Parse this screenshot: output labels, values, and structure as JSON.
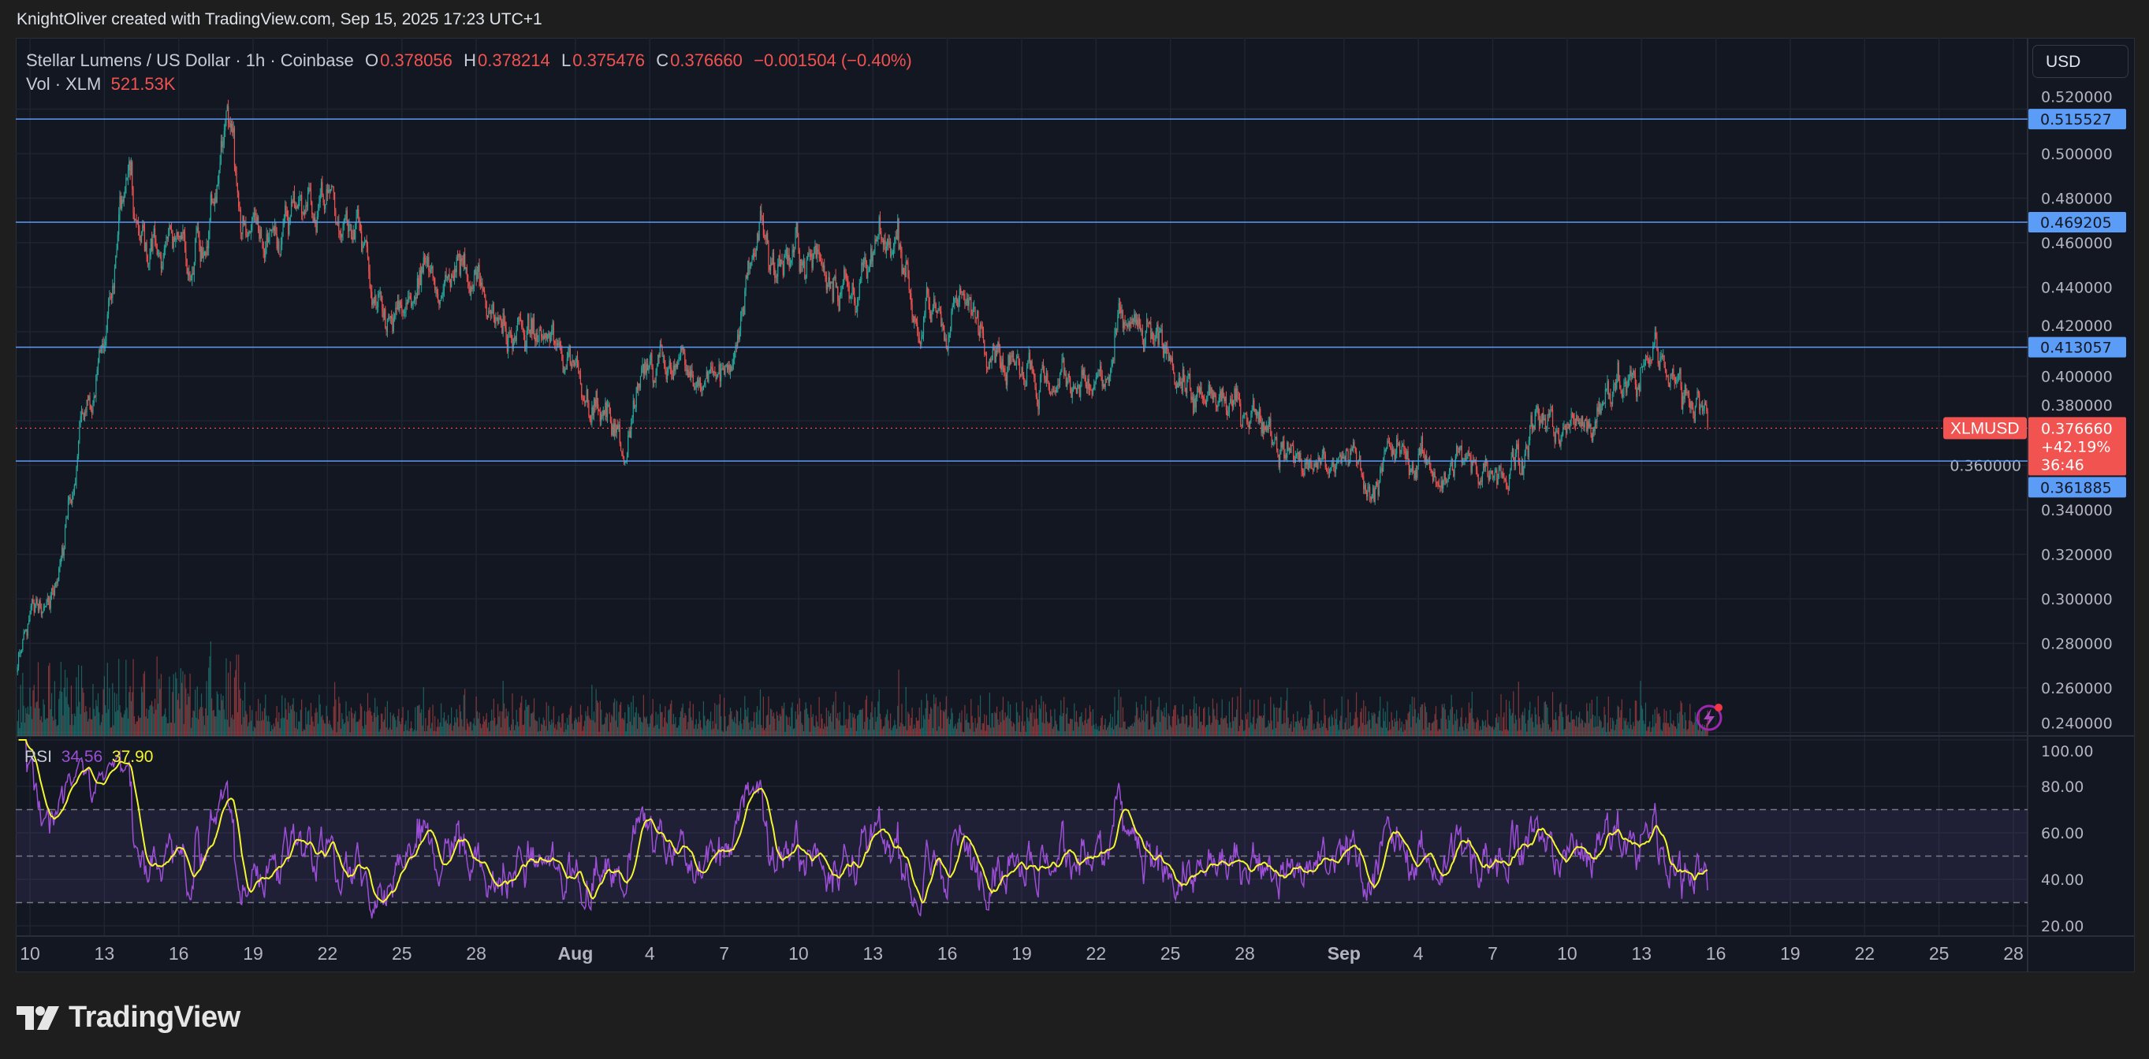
{
  "credit": "KnightOliver created with TradingView.com, Sep 15, 2025 17:23 UTC+1",
  "legend": {
    "symbol": "Stellar Lumens / US Dollar · 1h · Coinbase",
    "o_label": "O",
    "o": "0.378056",
    "h_label": "H",
    "h": "0.378214",
    "l_label": "L",
    "l": "0.375476",
    "c_label": "C",
    "c": "0.376660",
    "change": "−0.001504 (−0.40%)",
    "vol_label": "Vol · XLM",
    "vol": "521.53K"
  },
  "rsi_legend": {
    "label": "RSI",
    "rsi": "34.56",
    "ma": "37.90"
  },
  "currency_button": "USD",
  "logo_text": "TradingView",
  "colors": {
    "up": "#26a69a",
    "down": "#ef5350",
    "level_line": "#5b9cf6",
    "rsi": "#9c4fd6",
    "rsi_ma": "#f5f531",
    "price_label": "#f05350"
  },
  "icons": {
    "alert": "lightning-bolt-icon"
  },
  "chart_data": [
    {
      "type": "candlestick",
      "interval": "1h",
      "symbol_tag": "XLMUSD",
      "last_price": {
        "value": "0.376660",
        "change": "+42.19%",
        "countdown": "36:46"
      },
      "ylim": [
        0.23,
        0.53
      ],
      "yticks": [
        "0.520000",
        "0.500000",
        "0.480000",
        "0.460000",
        "0.440000",
        "0.420000",
        "0.400000",
        "0.380000",
        "0.360000",
        "0.340000",
        "0.320000",
        "0.300000",
        "0.280000",
        "0.260000",
        "0.240000"
      ],
      "horizontal_levels": [
        "0.515527",
        "0.469205",
        "0.413057",
        "0.361885"
      ],
      "xticks": [
        {
          "label": "10",
          "date": "2025-07-10"
        },
        {
          "label": "13",
          "date": "2025-07-13"
        },
        {
          "label": "16",
          "date": "2025-07-16"
        },
        {
          "label": "19",
          "date": "2025-07-19"
        },
        {
          "label": "22",
          "date": "2025-07-22"
        },
        {
          "label": "25",
          "date": "2025-07-25"
        },
        {
          "label": "28",
          "date": "2025-07-28"
        },
        {
          "label": "Aug",
          "date": "2025-08-01",
          "month": true
        },
        {
          "label": "4",
          "date": "2025-08-04"
        },
        {
          "label": "7",
          "date": "2025-08-07"
        },
        {
          "label": "10",
          "date": "2025-08-10"
        },
        {
          "label": "13",
          "date": "2025-08-13"
        },
        {
          "label": "16",
          "date": "2025-08-16"
        },
        {
          "label": "19",
          "date": "2025-08-19"
        },
        {
          "label": "22",
          "date": "2025-08-22"
        },
        {
          "label": "25",
          "date": "2025-08-25"
        },
        {
          "label": "28",
          "date": "2025-08-28"
        },
        {
          "label": "Sep",
          "date": "2025-09-01",
          "month": true
        },
        {
          "label": "4",
          "date": "2025-09-04"
        },
        {
          "label": "7",
          "date": "2025-09-07"
        },
        {
          "label": "10",
          "date": "2025-09-10"
        },
        {
          "label": "13",
          "date": "2025-09-13"
        },
        {
          "label": "16",
          "date": "2025-09-16"
        },
        {
          "label": "19",
          "date": "2025-09-19"
        },
        {
          "label": "22",
          "date": "2025-09-22"
        },
        {
          "label": "25",
          "date": "2025-09-25"
        },
        {
          "label": "28",
          "date": "2025-09-28"
        }
      ],
      "xlim": [
        "2025-07-09T12:00",
        "2025-09-29T12:00"
      ],
      "price_path": [
        [
          "2025-07-09T12:00",
          0.267
        ],
        [
          "2025-07-10T00:00",
          0.292
        ],
        [
          "2025-07-11T00:00",
          0.304
        ],
        [
          "2025-07-11T12:00",
          0.335
        ],
        [
          "2025-07-12T00:00",
          0.384
        ],
        [
          "2025-07-12T12:00",
          0.39
        ],
        [
          "2025-07-13T00:00",
          0.415
        ],
        [
          "2025-07-13T12:00",
          0.452
        ],
        [
          "2025-07-14T00:00",
          0.507
        ],
        [
          "2025-07-14T12:00",
          0.463
        ],
        [
          "2025-07-15T00:00",
          0.452
        ],
        [
          "2025-07-16T00:00",
          0.461
        ],
        [
          "2025-07-17T00:00",
          0.465
        ],
        [
          "2025-07-18T00:00",
          0.512
        ],
        [
          "2025-07-18T12:00",
          0.477
        ],
        [
          "2025-07-19T00:00",
          0.461
        ],
        [
          "2025-07-20T00:00",
          0.463
        ],
        [
          "2025-07-21T00:00",
          0.477
        ],
        [
          "2025-07-22T00:00",
          0.477
        ],
        [
          "2025-07-22T12:00",
          0.461
        ],
        [
          "2025-07-23T00:00",
          0.469
        ],
        [
          "2025-07-24T00:00",
          0.424
        ],
        [
          "2025-07-24T12:00",
          0.415
        ],
        [
          "2025-07-25T00:00",
          0.427
        ],
        [
          "2025-07-26T00:00",
          0.44
        ],
        [
          "2025-07-27T00:00",
          0.443
        ],
        [
          "2025-07-28T00:00",
          0.446
        ],
        [
          "2025-07-29T00:00",
          0.424
        ],
        [
          "2025-07-30T00:00",
          0.418
        ],
        [
          "2025-07-31T00:00",
          0.412
        ],
        [
          "2025-08-01T00:00",
          0.405
        ],
        [
          "2025-08-02T00:00",
          0.387
        ],
        [
          "2025-08-03T00:00",
          0.368
        ],
        [
          "2025-08-03T12:00",
          0.39
        ],
        [
          "2025-08-04T00:00",
          0.412
        ],
        [
          "2025-08-05T00:00",
          0.412
        ],
        [
          "2025-08-06T00:00",
          0.393
        ],
        [
          "2025-08-07T00:00",
          0.402
        ],
        [
          "2025-08-07T12:00",
          0.408
        ],
        [
          "2025-08-08T00:00",
          0.446
        ],
        [
          "2025-08-08T12:00",
          0.465
        ],
        [
          "2025-08-09T00:00",
          0.452
        ],
        [
          "2025-08-10T00:00",
          0.449
        ],
        [
          "2025-08-11T00:00",
          0.452
        ],
        [
          "2025-08-12T00:00",
          0.437
        ],
        [
          "2025-08-13T00:00",
          0.449
        ],
        [
          "2025-08-14T00:00",
          0.461
        ],
        [
          "2025-08-14T12:00",
          0.433
        ],
        [
          "2025-08-15T00:00",
          0.424
        ],
        [
          "2025-08-16T00:00",
          0.43
        ],
        [
          "2025-08-17T00:00",
          0.427
        ],
        [
          "2025-08-18T00:00",
          0.42
        ],
        [
          "2025-08-18T12:00",
          0.408
        ],
        [
          "2025-08-19T00:00",
          0.412
        ],
        [
          "2025-08-20T00:00",
          0.396
        ],
        [
          "2025-08-21T00:00",
          0.399
        ],
        [
          "2025-08-22T00:00",
          0.393
        ],
        [
          "2025-08-22T12:00",
          0.39
        ],
        [
          "2025-08-23T00:00",
          0.424
        ],
        [
          "2025-08-24T00:00",
          0.415
        ],
        [
          "2025-08-25T00:00",
          0.408
        ],
        [
          "2025-08-26T00:00",
          0.387
        ],
        [
          "2025-08-27T00:00",
          0.39
        ],
        [
          "2025-08-28T00:00",
          0.384
        ],
        [
          "2025-08-29T00:00",
          0.378
        ],
        [
          "2025-08-30T00:00",
          0.36
        ],
        [
          "2025-08-31T00:00",
          0.357
        ],
        [
          "2025-09-01T00:00",
          0.36
        ],
        [
          "2025-09-02T00:00",
          0.354
        ],
        [
          "2025-09-03T00:00",
          0.364
        ],
        [
          "2025-09-04T00:00",
          0.363
        ],
        [
          "2025-09-05T00:00",
          0.357
        ],
        [
          "2025-09-06T00:00",
          0.36
        ],
        [
          "2025-09-07T00:00",
          0.357
        ],
        [
          "2025-09-08T00:00",
          0.363
        ],
        [
          "2025-09-09T00:00",
          0.381
        ],
        [
          "2025-09-10T00:00",
          0.375
        ],
        [
          "2025-09-11T00:00",
          0.384
        ],
        [
          "2025-09-12T00:00",
          0.393
        ],
        [
          "2025-09-13T00:00",
          0.402
        ],
        [
          "2025-09-13T12:00",
          0.412
        ],
        [
          "2025-09-14T00:00",
          0.405
        ],
        [
          "2025-09-14T12:00",
          0.393
        ],
        [
          "2025-09-15T00:00",
          0.39
        ],
        [
          "2025-09-15T16:00",
          0.37666
        ]
      ],
      "grid": true
    },
    {
      "type": "line",
      "name": "RSI",
      "ylim": [
        15,
        105
      ],
      "yticks": [
        "100.00",
        "80.00",
        "60.00",
        "40.00",
        "20.00"
      ],
      "bands": [
        70,
        50,
        30
      ],
      "last_values": {
        "rsi": 34.56,
        "ma": 37.9
      }
    }
  ]
}
